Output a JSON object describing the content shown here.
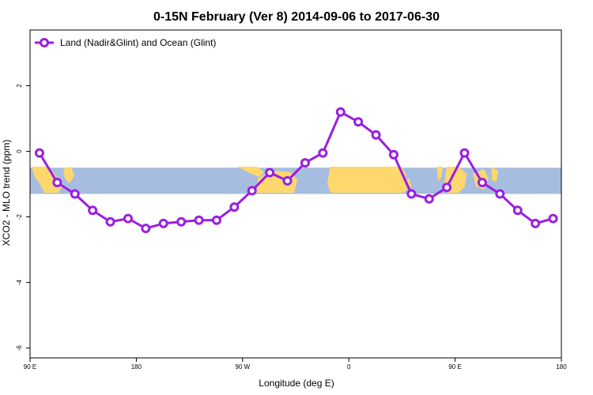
{
  "chart_data": {
    "type": "line",
    "title": "0-15N February (Ver 8)   2014-09-06 to 2017-06-30",
    "xlabel": "Longitude (deg E)",
    "ylabel": "XCO2 - MLO trend (ppm)",
    "xlim": [
      90,
      540
    ],
    "ylim": [
      -6.3,
      3.7
    ],
    "x_ticks": [
      {
        "value": 90,
        "label": "90 E"
      },
      {
        "value": 180,
        "label": "180"
      },
      {
        "value": 270,
        "label": "90 W"
      },
      {
        "value": 360,
        "label": "0"
      },
      {
        "value": 450,
        "label": "90 E"
      },
      {
        "value": 540,
        "label": "180"
      }
    ],
    "y_ticks": [
      {
        "value": 2,
        "label": "2"
      },
      {
        "value": 0,
        "label": "0"
      },
      {
        "value": -2,
        "label": "-2"
      },
      {
        "value": -4,
        "label": "-4"
      },
      {
        "value": -6,
        "label": "-6"
      }
    ],
    "map_band": {
      "y_top": -0.5,
      "y_bottom": -1.3,
      "ocean_color": "#a7bddf",
      "land_color": "#fed76d"
    },
    "series": [
      {
        "name": "Land (Nadir&Glint) and Ocean (Glint)",
        "color": "#9a1fe0",
        "x": [
          98,
          113,
          128,
          143,
          158,
          173,
          188,
          203,
          218,
          233,
          248,
          263,
          278,
          293,
          308,
          323,
          338,
          353,
          368,
          383,
          398,
          413,
          428,
          443,
          458,
          473,
          488,
          503,
          518,
          533
        ],
        "y": [
          -0.05,
          -0.95,
          -1.3,
          -1.8,
          -2.15,
          -2.05,
          -2.35,
          -2.2,
          -2.15,
          -2.1,
          -2.1,
          -1.7,
          -1.2,
          -0.65,
          -0.9,
          -0.35,
          -0.05,
          1.2,
          0.9,
          0.5,
          -0.1,
          -1.3,
          -1.45,
          -1.1,
          -0.05,
          -0.95,
          -1.3,
          -1.8,
          -2.2,
          -2.05
        ]
      }
    ],
    "legend": "top-left",
    "grid": false
  }
}
